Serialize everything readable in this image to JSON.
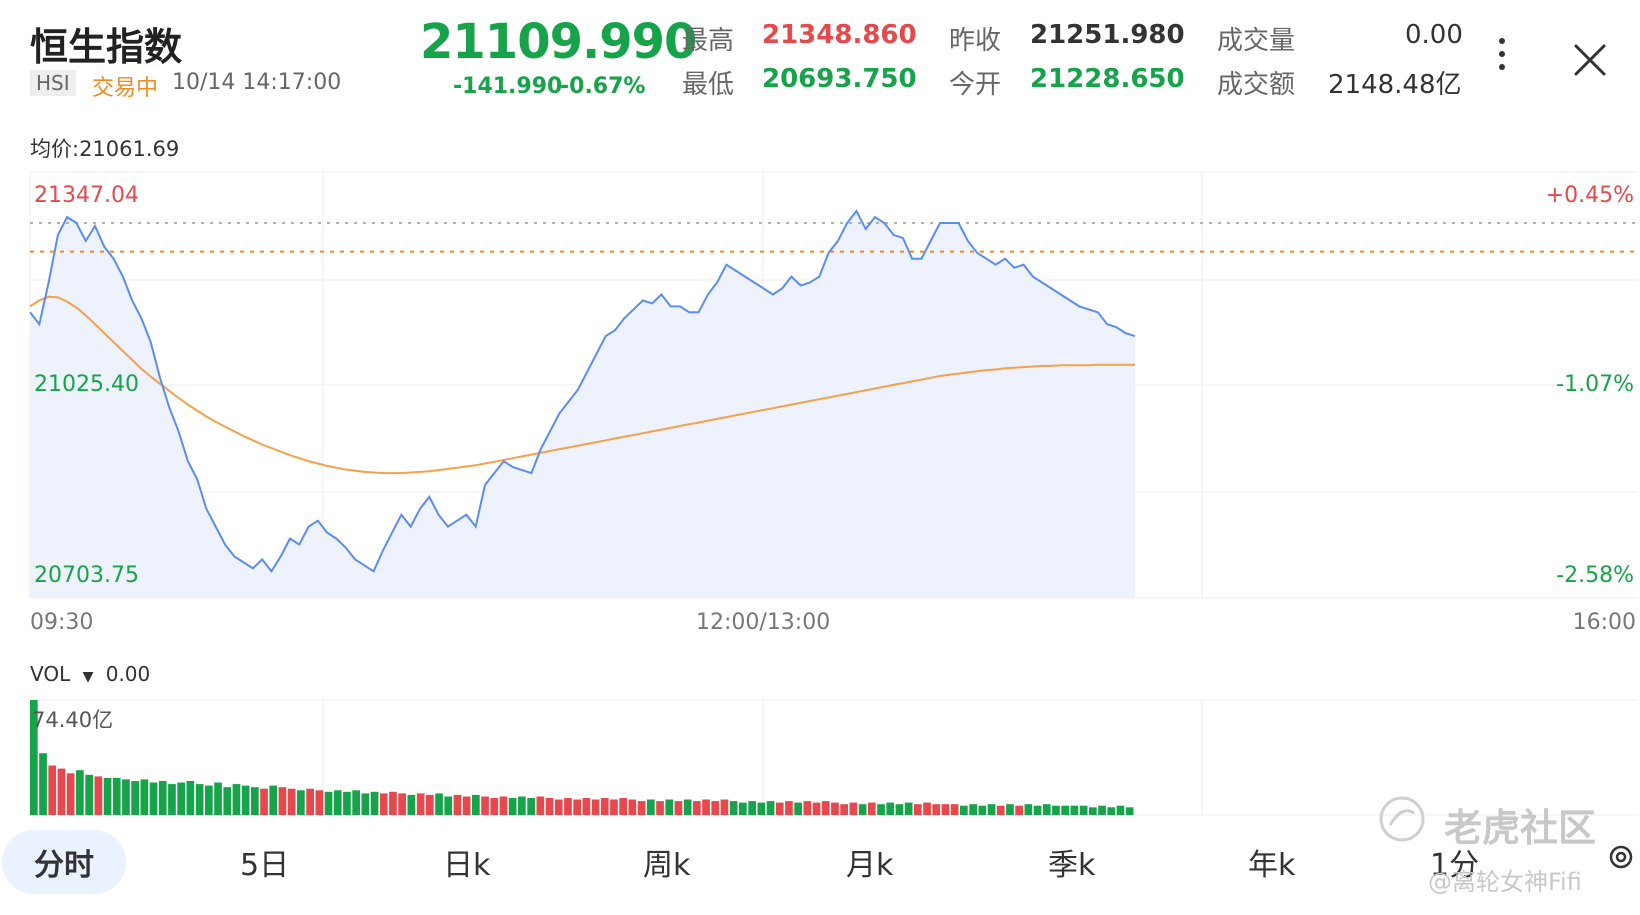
{
  "header": {
    "title": "恒生指数",
    "symbol": "HSI",
    "status": "交易中",
    "datetime": "10/14 14:17:00",
    "price": "21109.990",
    "change": "-141.990",
    "change_pct": "-0.67%",
    "stats": {
      "high_label": "最高",
      "high": "21348.860",
      "low_label": "最低",
      "low": "20693.750",
      "prev_close_label": "昨收",
      "prev_close": "21251.980",
      "open_label": "今开",
      "open": "21228.650",
      "volume_label": "成交量",
      "volume": "0.00",
      "turnover_label": "成交额",
      "turnover": "2148.48亿"
    }
  },
  "chart": {
    "avg_label": "均价:21061.69",
    "y_left": {
      "top": "21347.04",
      "mid": "21025.40",
      "bottom": "20703.75"
    },
    "y_right": {
      "top": "+0.45%",
      "mid": "-1.07%",
      "bottom": "-2.58%"
    },
    "x_labels": {
      "start": "09:30",
      "mid": "12:00/13:00",
      "end": "16:00"
    },
    "colors": {
      "line": "#5b8def",
      "fill": "#eef2fd",
      "avg": "#f5a04a",
      "prev_close": "#f08a24",
      "up": "#e5484d",
      "down": "#16a34a"
    }
  },
  "chart_data": {
    "type": "line",
    "x_range": [
      "09:30",
      "16:00"
    ],
    "ylim": [
      20703.75,
      21347.04
    ],
    "prev_close": 21251.98,
    "series": [
      {
        "values": [
          21150,
          21130,
          21200,
          21280,
          21310,
          21300,
          21270,
          21295,
          21260,
          21240,
          21210,
          21170,
          21140,
          21100,
          21040,
          20990,
          20950,
          20900,
          20870,
          20820,
          20790,
          20760,
          20740,
          20730,
          20720,
          20735,
          20715,
          20740,
          20770,
          20760,
          20790,
          20800,
          20780,
          20770,
          20755,
          20735,
          20725,
          20715,
          20750,
          20780,
          20810,
          20790,
          20820,
          20840,
          20810,
          20790,
          20800,
          20810,
          20790,
          20860,
          20880,
          20900,
          20890,
          20885,
          20880,
          20920,
          20950,
          20980,
          21000,
          21020,
          21050,
          21080,
          21110,
          21120,
          21140,
          21155,
          21170,
          21165,
          21180,
          21160,
          21160,
          21150,
          21150,
          21180,
          21200,
          21230,
          21220,
          21210,
          21200,
          21190,
          21180,
          21190,
          21210,
          21195,
          21200,
          21210,
          21250,
          21270,
          21300,
          21320,
          21290,
          21310,
          21300,
          21280,
          21275,
          21240,
          21240,
          21270,
          21300,
          21300,
          21300,
          21270,
          21250,
          21240,
          21230,
          21240,
          21225,
          21230,
          21210,
          21200,
          21190,
          21180,
          21170,
          21160,
          21155,
          21150,
          21130,
          21125,
          21115,
          21110
        ]
      },
      {
        "values": [
          21160,
          21170,
          21176,
          21175,
          21168,
          21158,
          21145,
          21130,
          21115,
          21100,
          21085,
          21070,
          21055,
          21042,
          21030,
          21018,
          21006,
          20995,
          20985,
          20975,
          20966,
          20958,
          20950,
          20942,
          20935,
          20928,
          20922,
          20916,
          20910,
          20905,
          20900,
          20896,
          20892,
          20889,
          20886,
          20884,
          20882,
          20881,
          20880,
          20880,
          20880,
          20881,
          20882,
          20883,
          20885,
          20887,
          20889,
          20891,
          20893,
          20896,
          20899,
          20902,
          20905,
          20908,
          20911,
          20914,
          20917,
          20920,
          20923,
          20926,
          20929,
          20932,
          20935,
          20938,
          20941,
          20944,
          20947,
          20950,
          20953,
          20956,
          20959,
          20962,
          20965,
          20968,
          20971,
          20974,
          20977,
          20980,
          20983,
          20986,
          20989,
          20992,
          20995,
          20998,
          21001,
          21004,
          21007,
          21010,
          21013,
          21016,
          21019,
          21022,
          21025,
          21028,
          21031,
          21034,
          21037,
          21040,
          21043,
          21045,
          21047,
          21049,
          21051,
          21053,
          21054,
          21056,
          21057,
          21058,
          21059,
          21060,
          21060,
          21061,
          21061,
          21061,
          21061,
          21062,
          21062,
          21062,
          21062,
          21062
        ]
      }
    ],
    "volume": {
      "max_label": "74.40亿",
      "values": [
        74.4,
        40,
        32,
        30,
        27,
        29,
        26,
        25,
        24,
        24,
        23,
        22,
        23,
        21,
        22,
        20,
        21,
        22,
        20,
        19,
        21,
        18,
        20,
        19,
        18,
        17,
        19,
        18,
        17,
        16,
        17,
        16,
        15,
        16,
        15,
        16,
        14,
        15,
        14,
        15,
        14,
        13,
        14,
        13,
        14,
        12,
        13,
        12,
        13,
        12,
        11,
        12,
        11,
        12,
        11,
        12,
        11,
        10,
        11,
        10,
        11,
        10,
        11,
        10,
        11,
        10,
        9,
        10,
        9,
        10,
        9,
        10,
        9,
        10,
        9,
        10,
        9,
        8,
        9,
        8,
        9,
        8,
        9,
        8,
        9,
        8,
        9,
        8,
        7,
        8,
        7,
        8,
        7,
        8,
        7,
        8,
        7,
        8,
        7,
        7,
        7,
        6,
        7,
        6,
        7,
        6,
        7,
        6,
        7,
        6,
        7,
        6,
        6,
        6,
        6,
        5,
        6,
        5,
        6,
        5
      ]
    }
  },
  "volume_panel": {
    "label": "VOL",
    "value": "0.00",
    "max_label": "74.40亿"
  },
  "tabs": [
    "分时",
    "5日",
    "日k",
    "周k",
    "月k",
    "季k",
    "年k",
    "1分"
  ],
  "watermark": {
    "brand": "老虎社区",
    "user": "@离轮女神Fifi"
  }
}
